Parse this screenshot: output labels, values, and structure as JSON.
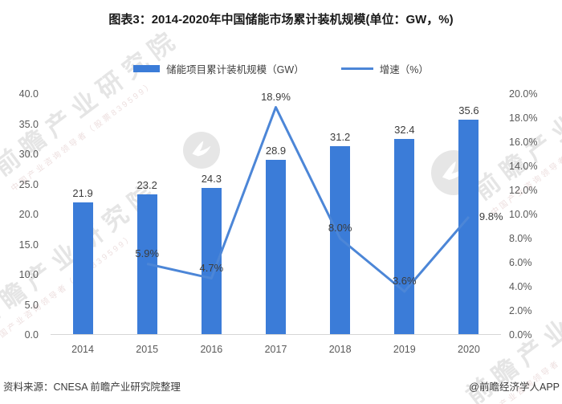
{
  "title": "图表3：2014-2020年中国储能市场累计装机规模(单位：GW，%)",
  "legend": {
    "bar_label": "储能项目累计装机规模（GW）",
    "line_label": "增速（%）"
  },
  "colors": {
    "bar": "#3b7cd8",
    "line": "#4c86d7",
    "axis_text": "#595959",
    "label_text": "#3c3c3c",
    "baseline": "#d6d6d6"
  },
  "chart_data": {
    "type": "bar+line",
    "categories": [
      "2014",
      "2015",
      "2016",
      "2017",
      "2018",
      "2019",
      "2020"
    ],
    "series": [
      {
        "name": "储能项目累计装机规模（GW）",
        "type": "bar",
        "axis": "left",
        "values": [
          21.9,
          23.2,
          24.3,
          28.9,
          31.2,
          32.4,
          35.6
        ],
        "labels": [
          "21.9",
          "23.2",
          "24.3",
          "28.9",
          "31.2",
          "32.4",
          "35.6"
        ]
      },
      {
        "name": "增速（%）",
        "type": "line",
        "axis": "right",
        "values": [
          null,
          5.9,
          4.7,
          18.9,
          8.0,
          3.6,
          9.8
        ],
        "labels": [
          null,
          "5.9%",
          "4.7%",
          "18.9%",
          "8.0%",
          "3.6%",
          "9.8%"
        ]
      }
    ],
    "left_axis": {
      "min": 0,
      "max": 40,
      "step": 5,
      "ticks": [
        "40.0",
        "35.0",
        "30.0",
        "25.0",
        "20.0",
        "15.0",
        "10.0",
        "5.0",
        "0.0"
      ]
    },
    "right_axis": {
      "min": 0,
      "max": 20,
      "step": 2,
      "ticks": [
        "20.0%",
        "18.0%",
        "16.0%",
        "14.0%",
        "12.0%",
        "10.0%",
        "8.0%",
        "6.0%",
        "4.0%",
        "2.0%",
        "0.0%"
      ]
    },
    "grid": false,
    "legend_position": "top"
  },
  "watermark": {
    "brand": "前瞻产业研究院",
    "tagline": "中国产业咨询领导者（股票839599）"
  },
  "footer": {
    "source": "资料来源：CNESA 前瞻产业研究院整理",
    "credit": "@前瞻经济学人APP"
  }
}
